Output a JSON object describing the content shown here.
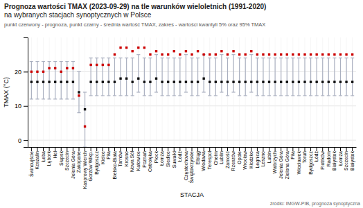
{
  "chart_data": {
    "type": "range",
    "title": [
      "Prognoza wartości TMAX (2023-09-29) na tle warunków wieloletnich (1991-2020)",
      "na wybranych stacjach synoptycznych w Polsce"
    ],
    "subtitle": "punkt czerwony - prognoza, punkt czarny - średnia wartość TMAX, zakres - wartości kwantyli 5% oraz 95% TMAX",
    "x_label": "STACJA",
    "y_label": "TMAX (°C)",
    "annotations": [
      "źródło: IMGW-PIB, prognoza synoptyczna"
    ],
    "categories": [
      "Świnoujście",
      "Koszalin",
      "Łeba",
      "Lębork",
      "Hel",
      "Słupsk",
      "Szczecin",
      "Jelenia Góra",
      "Zakopane",
      "Kasprowy Wierch",
      "Gorzów Wlkp.",
      "Bydgoszcz",
      "Kielce",
      "Piła",
      "Bielsko-Biała",
      "Tarnów",
      "Krosno",
      "Nowa Sól",
      "Katowice",
      "Poznań",
      "Ostrołęka",
      "Płock",
      "Łomża",
      "Siedlce",
      "Suwałki",
      "Łódź",
      "Częstochowa",
      "Świętokrzyskie",
      "Elbląg",
      "Włodawa",
      "Terespol",
      "Chełm",
      "Lublin",
      "Zamość",
      "Rzeszów",
      "Opole",
      "Wrocław",
      "Kłodzko",
      "Legnica",
      "Leszno",
      "Lubin",
      "Wałbrzych",
      "Jelenia Góra",
      "Zielona Góra",
      "Piła",
      "Włocławek",
      "Toruń",
      "Bydgoszcz",
      "Łódź",
      "Piotrków",
      "Radom",
      "Białystok",
      "Łomża",
      "Szczecin",
      "Białystok"
    ],
    "series": [
      {
        "type": "range",
        "color": "#aab0c0",
        "low": [
          12,
          12,
          12,
          12,
          12,
          12,
          12,
          12,
          8,
          -2,
          13,
          13,
          13,
          13,
          13,
          13,
          13,
          13,
          14,
          13,
          13,
          14,
          13,
          13,
          13,
          13,
          14,
          13,
          13,
          14,
          13,
          13,
          14,
          13,
          14,
          13,
          13,
          14,
          13,
          13,
          13,
          13,
          13,
          13,
          13,
          13,
          13,
          13,
          13,
          13,
          13,
          13,
          13,
          13,
          13
        ],
        "high": [
          23,
          23,
          23,
          23,
          23,
          23,
          23,
          23,
          20,
          14,
          24,
          24,
          24,
          24,
          24,
          24,
          24,
          24,
          25,
          24,
          24,
          25,
          24,
          24,
          24,
          24,
          25,
          24,
          24,
          25,
          24,
          24,
          25,
          24,
          25,
          24,
          24,
          25,
          24,
          24,
          24,
          24,
          24,
          24,
          24,
          24,
          24,
          24,
          24,
          24,
          24,
          24,
          24,
          24,
          24
        ]
      },
      {
        "type": "scatter",
        "color": "#111111",
        "marker": "square",
        "values": [
          17,
          17,
          17,
          17,
          17,
          17,
          17,
          17,
          14,
          9,
          17,
          17,
          17,
          17,
          17,
          18,
          18,
          17,
          18,
          17,
          17,
          18,
          17,
          17,
          17,
          17,
          17,
          17,
          17,
          18,
          17,
          17,
          17,
          17,
          17,
          17,
          17,
          17,
          17,
          17,
          17,
          17,
          17,
          17,
          17,
          17,
          17,
          17,
          17,
          17,
          17,
          17,
          17,
          17,
          17
        ]
      },
      {
        "type": "scatter",
        "color": "#cc0000",
        "marker": "square",
        "values": [
          20,
          20,
          20,
          21,
          21,
          20,
          21,
          21,
          13,
          4,
          22,
          22,
          22,
          22,
          25,
          27,
          27,
          26,
          27,
          27,
          25,
          26,
          25,
          25,
          26,
          25,
          26,
          25,
          26,
          25,
          25,
          25,
          26,
          25,
          26,
          25,
          25,
          26,
          25,
          25,
          25,
          25,
          25,
          25,
          25,
          25,
          25,
          25,
          25,
          25,
          25,
          25,
          25,
          25,
          25
        ]
      }
    ],
    "ylim": [
      -2,
      30
    ],
    "yticks": [
      0,
      10,
      20
    ],
    "grid": true
  }
}
